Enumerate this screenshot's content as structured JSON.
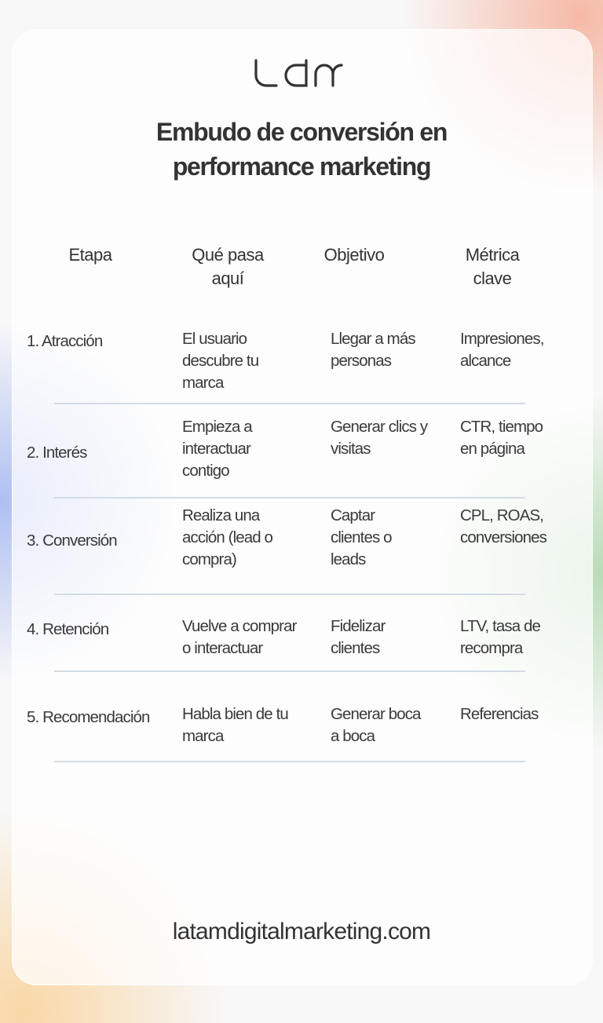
{
  "brand": {
    "logo_text": "ldm"
  },
  "title": {
    "line1": "Embudo de conversión en",
    "line2": "performance marketing"
  },
  "table": {
    "headers": [
      {
        "line1": "Etapa",
        "line2": ""
      },
      {
        "line1": "Qué pasa",
        "line2": "aquí"
      },
      {
        "line1": "Objetivo",
        "line2": ""
      },
      {
        "line1": "Métrica",
        "line2": "clave"
      }
    ],
    "rows": [
      {
        "stage": "1. Atracción",
        "what": [
          "El usuario",
          "descubre tu",
          "marca"
        ],
        "goal": [
          "Llegar a más",
          "personas"
        ],
        "metric": [
          "Impresiones,",
          "alcance"
        ]
      },
      {
        "stage": "2. Interés",
        "what": [
          "Empieza a",
          "interactuar",
          "contigo"
        ],
        "goal": [
          "Generar clics y",
          "visitas"
        ],
        "metric": [
          "CTR, tiempo",
          "en página"
        ]
      },
      {
        "stage": "3. Conversión",
        "what": [
          "Realiza una",
          "acción (lead o",
          "compra)"
        ],
        "goal": [
          "Captar",
          "clientes o",
          "leads"
        ],
        "metric": [
          "CPL, ROAS,",
          "conversiones"
        ]
      },
      {
        "stage": "4. Retención",
        "what": [
          "Vuelve a comprar",
          "o interactuar"
        ],
        "goal": [
          "Fidelizar",
          "clientes"
        ],
        "metric": [
          "LTV, tasa de",
          "recompra"
        ]
      },
      {
        "stage": "5. Recomendación",
        "what": [
          "Habla bien de tu",
          "marca"
        ],
        "goal": [
          "Generar boca",
          "a boca"
        ],
        "metric": [
          "Referencias"
        ]
      }
    ]
  },
  "footer": {
    "url": "latamdigitalmarketing.com"
  },
  "colors": {
    "text": "#333333",
    "divider": "#d3dbe6",
    "accent_pink": "#f6b9a6",
    "accent_blue": "#aebff2",
    "accent_green": "#b9dcb7",
    "accent_orange": "#f9d7a6"
  }
}
